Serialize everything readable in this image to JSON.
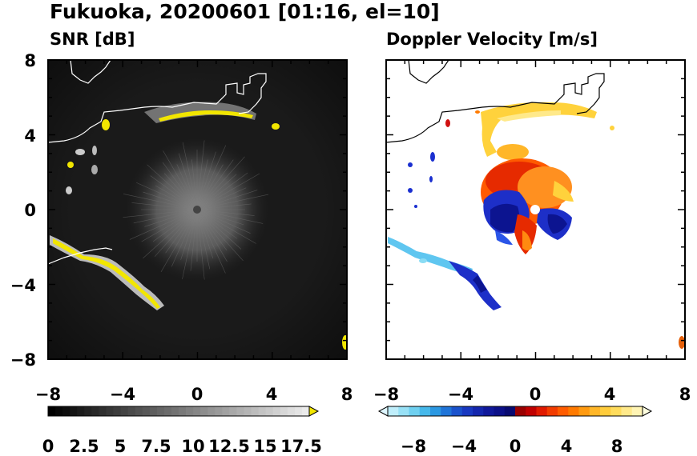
{
  "figure": {
    "title": "Fukuoka, 20200601 [01:16, el=10]"
  },
  "chart_data": [
    {
      "type": "heatmap",
      "title": "SNR [dB]",
      "xlim": [
        -8,
        8
      ],
      "ylim": [
        -8,
        8
      ],
      "xticks": [
        "−8",
        "−4",
        "0",
        "4",
        "8"
      ],
      "yticks": [
        "8",
        "4",
        "0",
        "−4",
        "−8"
      ],
      "background_color": "#1a1a1a",
      "colorbar": {
        "range": [
          0,
          18
        ],
        "ticks": [
          "0",
          "2.5",
          "5",
          "7.5",
          "10",
          "12.5",
          "15",
          "17.5"
        ],
        "extend": "max",
        "extend_color": "#f2e600"
      },
      "features": [
        {
          "name": "central clutter disk",
          "center": [
            0,
            0
          ],
          "radius_km": 3.2,
          "level_db": 8
        },
        {
          "name": "northern coastline echo",
          "x": [
            -2,
            3.5
          ],
          "y": [
            4.6,
            5.2
          ],
          "level_db": 17.5
        },
        {
          "name": "southwestern coastline echo",
          "x": [
            -7.5,
            -1.8
          ],
          "y": [
            -5,
            -1.6
          ],
          "level_db": 17.5
        }
      ]
    },
    {
      "type": "heatmap",
      "title": "Doppler Velocity [m/s]",
      "xlim": [
        -8,
        8
      ],
      "ylim": [
        -8,
        8
      ],
      "xticks": [
        "−8",
        "−4",
        "0",
        "4",
        "8"
      ],
      "yticks": [
        "8",
        "4",
        "0",
        "−4",
        "−8"
      ],
      "background_color": "#ffffff",
      "colorbar": {
        "range": [
          -10,
          10
        ],
        "ticks": [
          "−8",
          "−4",
          "0",
          "4",
          "8"
        ],
        "extend": "both",
        "extend_colors": [
          "#dff6ff",
          "#ffffe0"
        ]
      },
      "features": [
        {
          "name": "approaching sector",
          "velocity_ms": -7
        },
        {
          "name": "receding sector",
          "velocity_ms": 6
        },
        {
          "name": "northern coastline echo",
          "velocity_ms": 7
        },
        {
          "name": "southwestern coastline echo",
          "velocity_ms": -8
        }
      ]
    }
  ],
  "colors": {
    "coastline_snr": "#ffffff",
    "coastline_doppler": "#000000",
    "frame": "#000000"
  }
}
